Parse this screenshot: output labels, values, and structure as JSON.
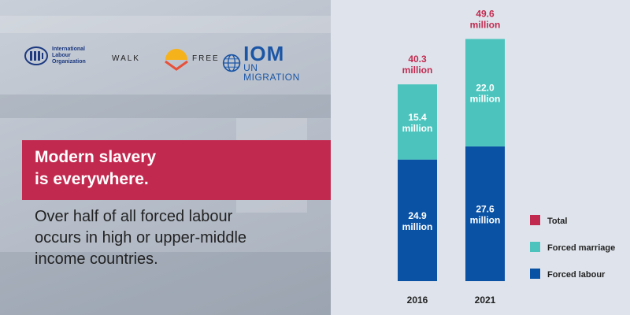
{
  "logos": {
    "ilo_text": [
      "International",
      "Labour",
      "Organization"
    ],
    "walkfree_left": "WALK",
    "walkfree_right": "FREE",
    "iom_big": "IOM",
    "iom_small": "UN MIGRATION"
  },
  "headline": {
    "line1": "Modern slavery",
    "line2": "is everywhere."
  },
  "subtext": {
    "line1": "Over half of all forced labour",
    "line2": "occurs in high or upper-middle",
    "line3": "income countries."
  },
  "colors": {
    "accent": "#c2294f",
    "forced_marriage": "#4cc4bd",
    "forced_labour": "#0a52a4",
    "total_label": "#c2294f"
  },
  "chart_data": {
    "type": "bar",
    "stacked": true,
    "categories": [
      "2016",
      "2021"
    ],
    "series": [
      {
        "name": "Forced labour",
        "values": [
          24.9,
          27.6
        ],
        "labels": [
          "24.9",
          "27.6"
        ],
        "color": "#0a52a4"
      },
      {
        "name": "Forced marriage",
        "values": [
          15.4,
          22.0
        ],
        "labels": [
          "15.4",
          "22.0"
        ],
        "color": "#4cc4bd"
      }
    ],
    "totals": [
      40.3,
      49.6
    ],
    "total_labels": [
      "40.3",
      "49.6"
    ],
    "unit": "million",
    "legend": [
      "Total",
      "Forced marriage",
      "Forced labour"
    ],
    "legend_placement": "right",
    "ylim": [
      0,
      50
    ]
  }
}
